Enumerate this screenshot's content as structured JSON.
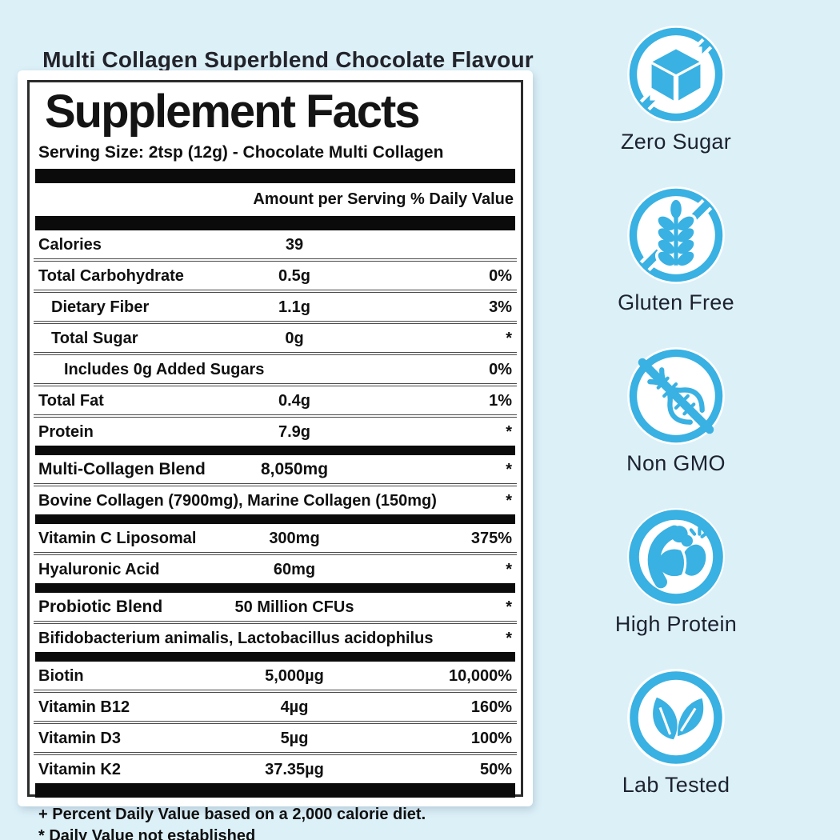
{
  "colors": {
    "accent": "#39b1e2",
    "background": "#dcf0f8",
    "panel": "#ffffff",
    "bar": "#0b0b0b"
  },
  "header": {
    "title": "Multi Collagen Superblend Chocolate Flavour"
  },
  "label": {
    "title": "Supplement Facts",
    "serving": "Serving Size: 2tsp (12g) - Chocolate Multi Collagen",
    "column_header": "Amount per Serving % Daily Value",
    "rows": [
      {
        "name": "Calories",
        "amount": "39",
        "dv": ""
      },
      {
        "name": "Total Carbohydrate",
        "amount": "0.5g",
        "dv": "0%"
      },
      {
        "name": "Dietary Fiber",
        "amount": "1.1g",
        "dv": "3%",
        "indent": 1
      },
      {
        "name": "Total Sugar",
        "amount": "0g",
        "dv": "*",
        "indent": 1
      },
      {
        "name": "Includes 0g Added Sugars",
        "amount": "",
        "dv": "0%",
        "indent": 2,
        "wide": true
      },
      {
        "name": "Total Fat",
        "amount": "0.4g",
        "dv": "1%"
      },
      {
        "name": "Protein",
        "amount": "7.9g",
        "dv": "*"
      },
      {
        "bar": true
      },
      {
        "name": "Multi-Collagen Blend",
        "amount": "8,050mg",
        "dv": "*",
        "bold": true,
        "strong_amount": true
      },
      {
        "name": "Bovine Collagen (7900mg), Marine Collagen (150mg)",
        "amount": "",
        "dv": "*",
        "wide": true
      },
      {
        "bar": true
      },
      {
        "name": "Vitamin C Liposomal",
        "amount": "300mg",
        "dv": "375%"
      },
      {
        "name": "Hyaluronic Acid",
        "amount": "60mg",
        "dv": "*"
      },
      {
        "bar": true
      },
      {
        "name": "Probiotic Blend",
        "amount": "50 Million CFUs",
        "dv": "*",
        "bold": true
      },
      {
        "name": "Bifidobacterium animalis, Lactobacillus acidophilus",
        "amount": "",
        "dv": "*",
        "wide": true
      },
      {
        "bar": true
      },
      {
        "name": "Biotin",
        "amount": "5,000µg",
        "dv": "10,000%"
      },
      {
        "name": "Vitamin B12",
        "amount": "4µg",
        "dv": "160%"
      },
      {
        "name": "Vitamin D3",
        "amount": "5µg",
        "dv": "100%"
      },
      {
        "name": "Vitamin K2",
        "amount": "37.35µg",
        "dv": "50%"
      },
      {
        "bar": true,
        "size": "lg"
      }
    ],
    "footnotes": [
      "+ Percent Daily Value based on a 2,000 calorie diet.",
      "* Daily Value not established"
    ]
  },
  "badges": [
    {
      "icon": "no-sugar-icon",
      "label": "Zero Sugar"
    },
    {
      "icon": "no-gluten-icon",
      "label": "Gluten Free"
    },
    {
      "icon": "no-gmo-icon",
      "label": "Non GMO"
    },
    {
      "icon": "muscle-icon",
      "label": "High Protein"
    },
    {
      "icon": "leaf-icon",
      "label": "Lab Tested"
    }
  ]
}
